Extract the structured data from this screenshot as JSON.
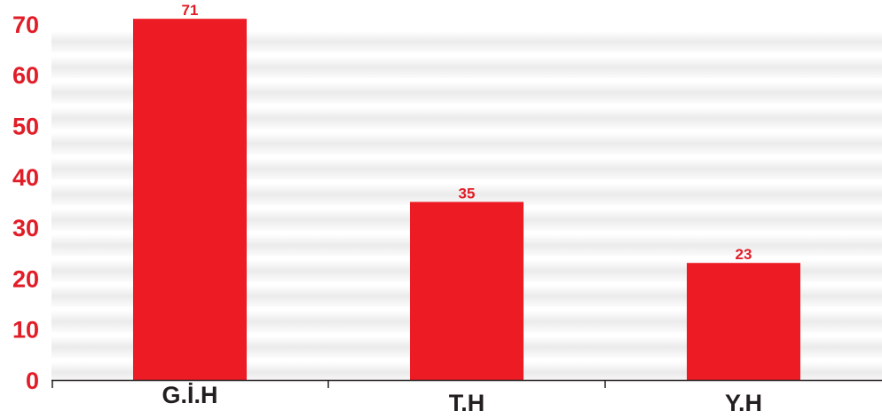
{
  "chart_data": {
    "type": "bar",
    "title": "",
    "xlabel": "",
    "ylabel": "",
    "categories": [
      "G.İ.H",
      "T.H",
      "Y.H"
    ],
    "values": [
      71,
      35,
      23
    ],
    "data_labels": [
      "71",
      "35",
      "23"
    ],
    "y_ticks": [
      "0",
      "10",
      "20",
      "30",
      "40",
      "50",
      "60",
      "70"
    ],
    "ylim": [
      0,
      75
    ],
    "grid": true,
    "legend": "none",
    "colors": {
      "bar": "#ed1c24",
      "tick_label": "#e11d27",
      "category_label": "#231f20",
      "axis": "#231f20",
      "plot_band_light": "#ffffff",
      "plot_band_shade": "#e4e4e4"
    }
  }
}
